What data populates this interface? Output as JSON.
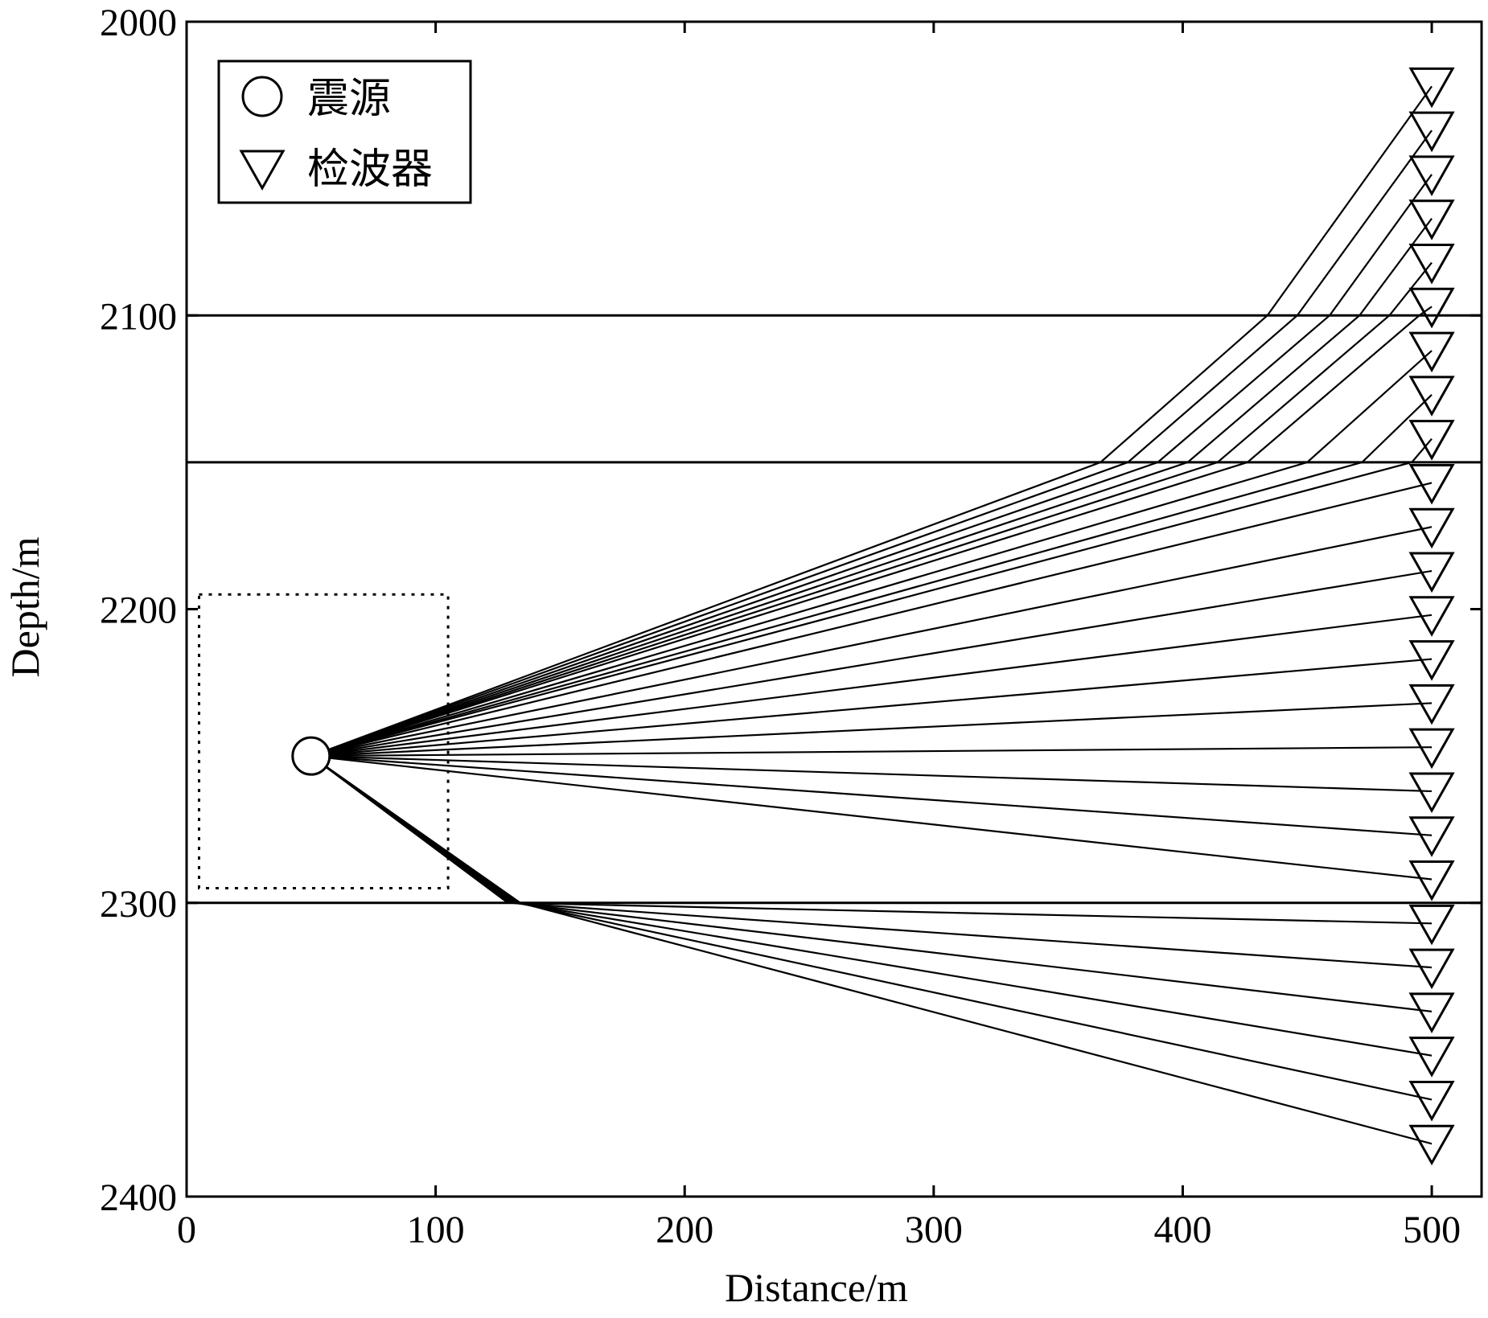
{
  "chart_data": {
    "type": "line",
    "xlabel": "Distance/m",
    "ylabel": "Depth/m",
    "xlim": [
      0,
      520
    ],
    "ylim": [
      2000,
      2400
    ],
    "y_inverted": true,
    "x_ticks": [
      0,
      100,
      200,
      300,
      400,
      500
    ],
    "y_ticks": [
      2000,
      2100,
      2200,
      2300,
      2400
    ],
    "x_tick_labels": [
      "0",
      "100",
      "200",
      "300",
      "400",
      "500"
    ],
    "y_tick_labels": [
      "2000",
      "2100",
      "2200",
      "2300",
      "2400"
    ],
    "grid": false,
    "legend": {
      "placement": "top-left",
      "entries": [
        {
          "label": "震源",
          "marker": "circle"
        },
        {
          "label": "检波器",
          "marker": "triangle-down"
        }
      ]
    },
    "layer_boundaries": [
      2100,
      2150,
      2300
    ],
    "source_region": {
      "x": [
        5,
        105
      ],
      "y": [
        2195,
        2295
      ],
      "style": "dotted"
    },
    "source": {
      "x": 50,
      "y": 2250
    },
    "receivers": {
      "x": 500,
      "depths": [
        2022,
        2037,
        2052,
        2067,
        2082,
        2097,
        2112,
        2127,
        2142,
        2157,
        2172,
        2187,
        2202,
        2217,
        2232,
        2247,
        2262,
        2277,
        2292,
        2307,
        2322,
        2337,
        2352,
        2367,
        2382
      ]
    },
    "ray_paths": [
      [
        [
          50,
          2250
        ],
        [
          367,
          2150
        ],
        [
          434,
          2100
        ],
        [
          500,
          2022
        ]
      ],
      [
        [
          50,
          2250
        ],
        [
          378,
          2150
        ],
        [
          446,
          2100
        ],
        [
          500,
          2037
        ]
      ],
      [
        [
          50,
          2250
        ],
        [
          390,
          2150
        ],
        [
          459,
          2100
        ],
        [
          500,
          2052
        ]
      ],
      [
        [
          50,
          2250
        ],
        [
          402,
          2150
        ],
        [
          471,
          2100
        ],
        [
          500,
          2067
        ]
      ],
      [
        [
          50,
          2250
        ],
        [
          414,
          2150
        ],
        [
          483,
          2100
        ],
        [
          500,
          2082
        ]
      ],
      [
        [
          50,
          2250
        ],
        [
          426,
          2150
        ],
        [
          495,
          2100
        ],
        [
          500,
          2097
        ]
      ],
      [
        [
          50,
          2250
        ],
        [
          450,
          2150
        ],
        [
          500,
          2112
        ]
      ],
      [
        [
          50,
          2250
        ],
        [
          472,
          2150
        ],
        [
          500,
          2127
        ]
      ],
      [
        [
          50,
          2250
        ],
        [
          492,
          2150
        ],
        [
          500,
          2142
        ]
      ],
      [
        [
          50,
          2250
        ],
        [
          500,
          2157
        ]
      ],
      [
        [
          50,
          2250
        ],
        [
          500,
          2172
        ]
      ],
      [
        [
          50,
          2250
        ],
        [
          500,
          2187
        ]
      ],
      [
        [
          50,
          2250
        ],
        [
          500,
          2202
        ]
      ],
      [
        [
          50,
          2250
        ],
        [
          500,
          2217
        ]
      ],
      [
        [
          50,
          2250
        ],
        [
          500,
          2232
        ]
      ],
      [
        [
          50,
          2250
        ],
        [
          500,
          2247
        ]
      ],
      [
        [
          50,
          2250
        ],
        [
          500,
          2262
        ]
      ],
      [
        [
          50,
          2250
        ],
        [
          500,
          2277
        ]
      ],
      [
        [
          50,
          2250
        ],
        [
          500,
          2292
        ]
      ],
      [
        [
          50,
          2250
        ],
        [
          129,
          2300
        ],
        [
          500,
          2307
        ]
      ],
      [
        [
          50,
          2250
        ],
        [
          130,
          2300
        ],
        [
          500,
          2322
        ]
      ],
      [
        [
          50,
          2250
        ],
        [
          131,
          2300
        ],
        [
          500,
          2337
        ]
      ],
      [
        [
          50,
          2250
        ],
        [
          132,
          2300
        ],
        [
          500,
          2352
        ]
      ],
      [
        [
          50,
          2250
        ],
        [
          133,
          2300
        ],
        [
          500,
          2367
        ]
      ],
      [
        [
          50,
          2250
        ],
        [
          134,
          2300
        ],
        [
          500,
          2382
        ]
      ]
    ]
  }
}
